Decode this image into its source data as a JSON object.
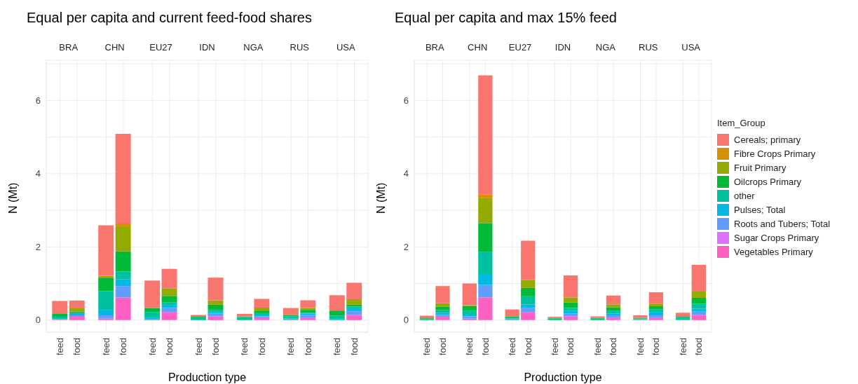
{
  "chart_data": [
    {
      "type": "bar",
      "title": "Equal per capita and current feed-food shares",
      "xlabel": "Production type",
      "ylabel": "N (Mt)",
      "stacked": true,
      "grid": true,
      "legend": false,
      "annotations": [
        "BRA",
        "CHN",
        "EU27",
        "IDN",
        "NGA",
        "RUS",
        "USA"
      ],
      "categories": [
        "feed",
        "food",
        "feed",
        "food",
        "feed",
        "food",
        "feed",
        "food",
        "feed",
        "food",
        "feed",
        "food",
        "feed",
        "food"
      ],
      "ylim": [
        -0.33,
        7.1
      ],
      "yticks": [
        0,
        {
          "value": 1,
          "label": null
        },
        2,
        {
          "value": 3,
          "label": null
        },
        4,
        {
          "value": 5,
          "label": null
        },
        6,
        {
          "value": 7,
          "label": null
        }
      ],
      "series": [
        {
          "color": "#ff61c3",
          "values": [
            0.01,
            0.09,
            0.04,
            0.62,
            0,
            0.21,
            0,
            0.1,
            0,
            0.07,
            0,
            0.07,
            0,
            0.14
          ]
        },
        {
          "color": "#db72fb",
          "values": [
            0,
            0,
            0,
            0,
            0,
            0,
            0,
            0,
            0,
            0,
            0,
            0,
            0,
            0
          ]
        },
        {
          "color": "#619cff",
          "values": [
            0.01,
            0.04,
            0.09,
            0.31,
            0.03,
            0.12,
            0,
            0.08,
            0,
            0.03,
            0.02,
            0.07,
            0,
            0.1
          ]
        },
        {
          "color": "#00b9e3",
          "values": [
            0.01,
            0.04,
            0.15,
            0.19,
            0.04,
            0.07,
            0,
            0.04,
            0,
            0.03,
            0.02,
            0.04,
            0.02,
            0.08
          ]
        },
        {
          "color": "#00c19f",
          "values": [
            0.06,
            0.03,
            0.51,
            0.21,
            0.15,
            0.09,
            0.07,
            0.06,
            0.08,
            0.06,
            0.06,
            0.02,
            0.1,
            0.05
          ]
        },
        {
          "color": "#00ba38",
          "values": [
            0.09,
            0.03,
            0.37,
            0.55,
            0.11,
            0.17,
            0.02,
            0.14,
            0.02,
            0.07,
            0.04,
            0.08,
            0.14,
            0.05
          ]
        },
        {
          "color": "#93aa00",
          "values": [
            0,
            0.09,
            0,
            0.68,
            0,
            0.21,
            0,
            0.12,
            0,
            0.08,
            0,
            0.05,
            0,
            0.15
          ]
        },
        {
          "color": "#d39200",
          "values": [
            0,
            0,
            0.05,
            0.08,
            0,
            0,
            0,
            0,
            0,
            0,
            0,
            0,
            0,
            0
          ]
        },
        {
          "color": "#f8766d",
          "values": [
            0.34,
            0.21,
            1.38,
            2.45,
            0.75,
            0.53,
            0.05,
            0.62,
            0.07,
            0.24,
            0.19,
            0.21,
            0.42,
            0.45
          ]
        }
      ]
    },
    {
      "type": "bar",
      "title": "Equal per capita and max 15% feed",
      "xlabel": "Production type",
      "ylabel": "N (Mt)",
      "stacked": true,
      "grid": true,
      "legend": "right",
      "legend_title": "Item_Group",
      "annotations": [
        "BRA",
        "CHN",
        "EU27",
        "IDN",
        "NGA",
        "RUS",
        "USA"
      ],
      "categories": [
        "feed",
        "food",
        "feed",
        "food",
        "feed",
        "food",
        "feed",
        "food",
        "feed",
        "food",
        "feed",
        "food",
        "feed",
        "food"
      ],
      "ylim": [
        -0.33,
        7.1
      ],
      "yticks": [
        0,
        {
          "value": 1,
          "label": null
        },
        2,
        {
          "value": 3,
          "label": null
        },
        4,
        {
          "value": 5,
          "label": null
        },
        6,
        {
          "value": 7,
          "label": null
        }
      ],
      "series": [
        {
          "name": "Vegetables Primary",
          "color": "#ff61c3",
          "values": [
            0,
            0.09,
            0.04,
            0.62,
            0,
            0.21,
            0,
            0.1,
            0,
            0.07,
            0,
            0.07,
            0,
            0.14
          ]
        },
        {
          "name": "Sugar Crops Primary",
          "color": "#db72fb",
          "values": [
            0,
            0,
            0,
            0,
            0,
            0,
            0,
            0,
            0,
            0,
            0,
            0,
            0,
            0
          ]
        },
        {
          "name": "Roots and Tubers; Total",
          "color": "#619cff",
          "values": [
            0,
            0.05,
            0.06,
            0.34,
            0.02,
            0.12,
            0,
            0.08,
            0,
            0.06,
            0.01,
            0.06,
            0,
            0.09
          ]
        },
        {
          "name": "Pulses; Total",
          "color": "#00b9e3",
          "values": [
            0,
            0.06,
            0.03,
            0.3,
            0.02,
            0.1,
            0,
            0.08,
            0,
            0.05,
            0.01,
            0.08,
            0.01,
            0.08
          ]
        },
        {
          "name": "other",
          "color": "#00c19f",
          "values": [
            0.03,
            0.07,
            0.12,
            0.61,
            0.03,
            0.22,
            0.04,
            0.07,
            0.04,
            0.08,
            0.02,
            0.08,
            0.05,
            0.14
          ]
        },
        {
          "name": "Oilcrops Primary",
          "color": "#00ba38",
          "values": [
            0.02,
            0.1,
            0.14,
            0.78,
            0.03,
            0.23,
            0.02,
            0.15,
            0.02,
            0.09,
            0.02,
            0.09,
            0.03,
            0.16
          ]
        },
        {
          "name": "Fruit Primary",
          "color": "#93aa00",
          "values": [
            0,
            0.09,
            0,
            0.68,
            0,
            0.22,
            0,
            0.14,
            0,
            0.08,
            0,
            0.06,
            0,
            0.17
          ]
        },
        {
          "name": "Fibre Crops Primary",
          "color": "#d39200",
          "values": [
            0,
            0,
            0.02,
            0.1,
            0,
            0,
            0,
            0,
            0,
            0,
            0,
            0,
            0,
            0
          ]
        },
        {
          "name": "Cereals; primary",
          "color": "#f8766d",
          "values": [
            0.07,
            0.47,
            0.59,
            3.26,
            0.19,
            1.07,
            0.03,
            0.6,
            0.04,
            0.24,
            0.07,
            0.32,
            0.11,
            0.73
          ]
        }
      ]
    }
  ]
}
